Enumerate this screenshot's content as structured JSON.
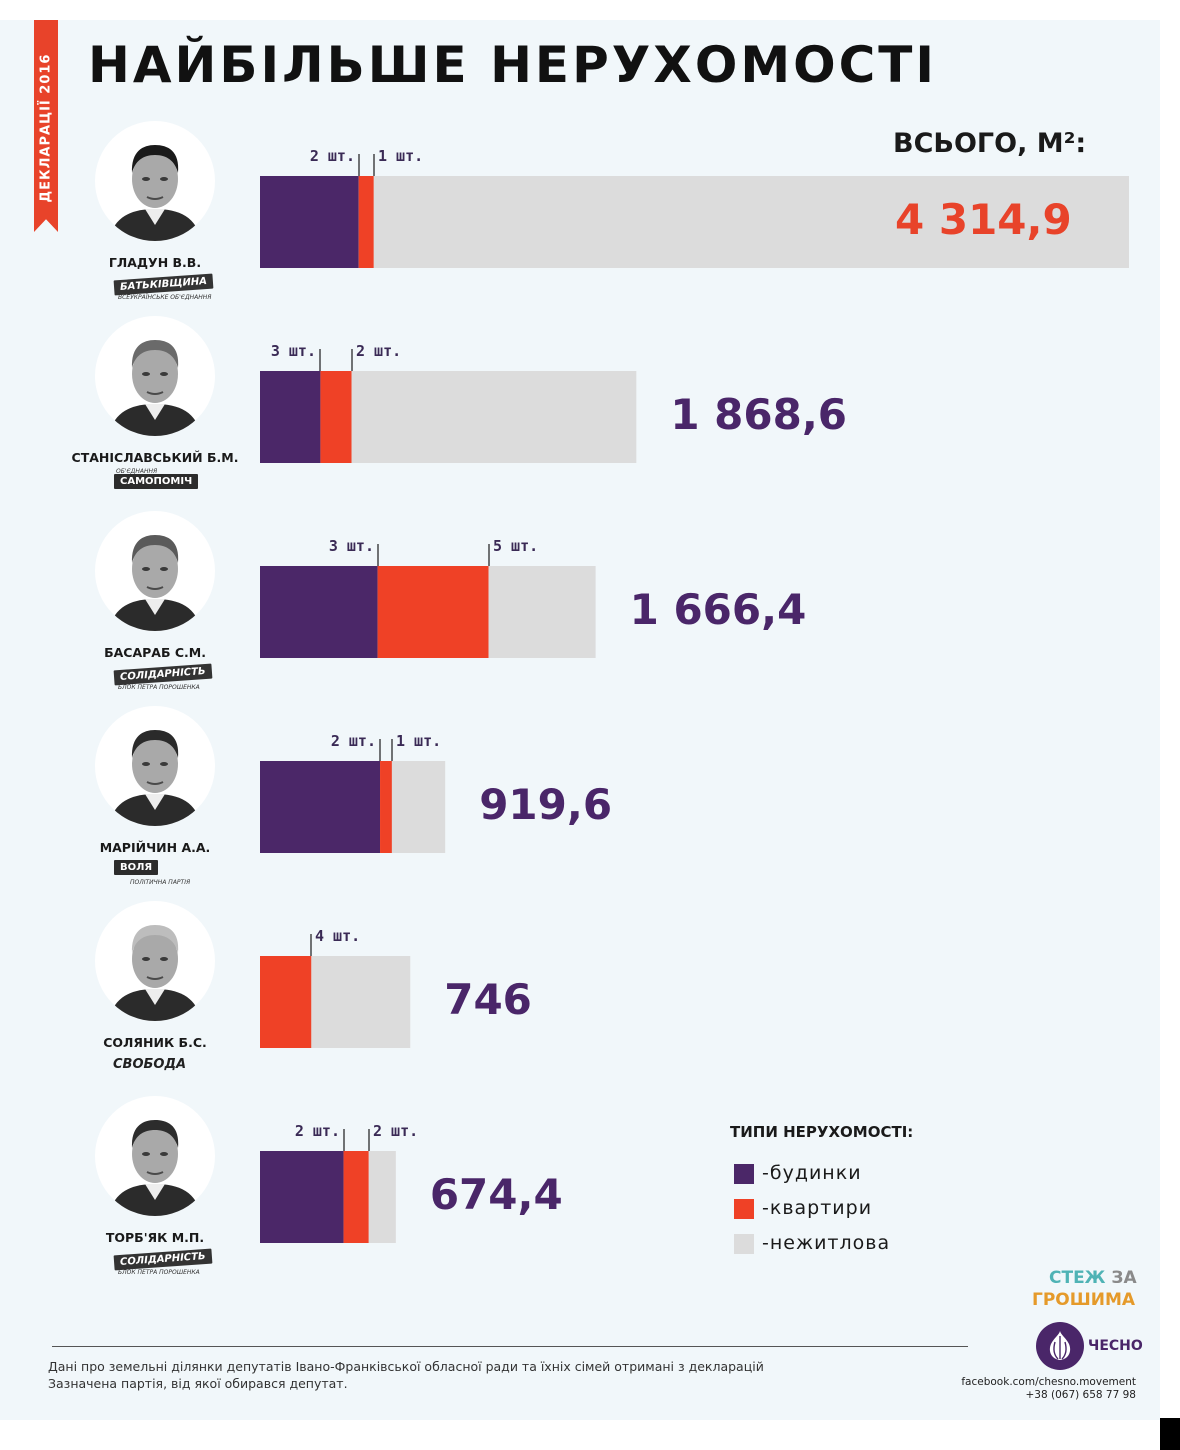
{
  "ribbon_text": "ДЕКЛАРАЦІЇ 2016",
  "title": "НАЙБІЛЬШЕ НЕРУХОМОСТІ",
  "total_label": "ВСЬОГО, М²:",
  "colors": {
    "houses": "#4b2768",
    "apartments": "#ef4126",
    "nonresidential": "#dcdcdc",
    "highlight_total": "#e8432a",
    "total": "#4a2669"
  },
  "chart_data": {
    "type": "bar",
    "orientation": "horizontal",
    "stacked": true,
    "title": "НАЙБІЛЬШЕ НЕРУХОМОСТІ",
    "value_label": "ВСЬОГО, М²:",
    "xlim": [
      0,
      4314.9
    ],
    "grid": false,
    "legend_position": "bottom-right",
    "series": [
      {
        "name": "-будинки",
        "key": "houses",
        "values": [
          490,
          300,
          584,
          596,
          0,
          415
        ]
      },
      {
        "name": "-квартири",
        "key": "apartments",
        "values": [
          75,
          155,
          551,
          59,
          255,
          125
        ]
      },
      {
        "name": "-нежитлова",
        "key": "nonresidential",
        "values": [
          3749.9,
          1413.6,
          531.4,
          264.6,
          491,
          134.4
        ]
      }
    ],
    "rows": [
      {
        "name": "ГЛАДУН В.В.",
        "party": "БАТЬКІВЩИНА",
        "party_sub": "ВСЕУКРАЇНСЬКЕ ОБ'ЄДНАННЯ",
        "total": "4 314,9",
        "total_value": 4314.9,
        "labels": [
          {
            "text": "2 шт.",
            "at": "houses"
          },
          {
            "text": "1 шт.",
            "at": "apartments"
          }
        ]
      },
      {
        "name": "СТАНІСЛАВСЬКИЙ Б.М.",
        "party": "САМОПОМІЧ",
        "party_sub": "ОБ'ЄДНАННЯ",
        "total": "1 868,6",
        "total_value": 1868.6,
        "labels": [
          {
            "text": "3 шт.",
            "at": "houses"
          },
          {
            "text": "2 шт.",
            "at": "apartments"
          }
        ]
      },
      {
        "name": "БАСАРАБ С.М.",
        "party": "СОЛІДАРНІСТЬ",
        "party_sub": "БЛОК ПЕТРА ПОРОШЕНКА",
        "total": "1 666,4",
        "total_value": 1666.4,
        "labels": [
          {
            "text": "3 шт.",
            "at": "houses"
          },
          {
            "text": "5 шт.",
            "at": "apartments"
          }
        ]
      },
      {
        "name": "МАРІЙЧИН А.А.",
        "party": "ВОЛЯ",
        "party_sub": "ПОЛІТИЧНА ПАРТІЯ",
        "total": "919,6",
        "total_value": 919.6,
        "labels": [
          {
            "text": "2 шт.",
            "at": "houses"
          },
          {
            "text": "1 шт.",
            "at": "apartments"
          }
        ]
      },
      {
        "name": "СОЛЯНИК Б.С.",
        "party": "СВОБОДА",
        "party_sub": "",
        "total": "746",
        "total_value": 746,
        "labels": [
          {
            "text": "4 шт.",
            "at": "apartments"
          }
        ]
      },
      {
        "name": "ТОРБ'ЯК М.П.",
        "party": "СОЛІДАРНІСТЬ",
        "party_sub": "БЛОК ПЕТРА ПОРОШЕНКА",
        "total": "674,4",
        "total_value": 674.4,
        "labels": [
          {
            "text": "2 шт.",
            "at": "houses"
          },
          {
            "text": "2 шт.",
            "at": "apartments"
          }
        ]
      }
    ]
  },
  "legend": {
    "title": "ТИПИ НЕРУХОМОСТІ:",
    "items": [
      "-будинки",
      "-квартири",
      "-нежитлова"
    ]
  },
  "brand": {
    "line1a": "СТЕЖ",
    "line1b": "ЗА",
    "line2": "ГРОШИМА",
    "logo_text": "ЧЕСНО"
  },
  "footer": {
    "line1": "Дані про земельні ділянки депутатів Івано-Франківської обласної ради та їхніх сімей отримані з декларацій",
    "line2": "Зазначена партія, від якої обирався депутат.",
    "facebook": "facebook.com/chesno.movement",
    "phone": "+38 (067) 658 77 98"
  }
}
